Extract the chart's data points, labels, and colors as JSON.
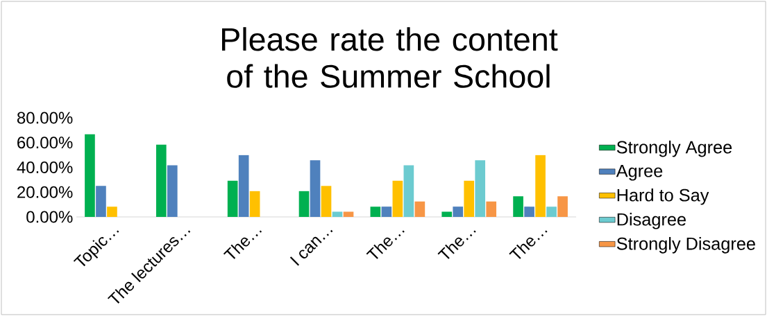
{
  "chart_data": {
    "type": "bar",
    "title": "Please rate the content of the Summer School",
    "categories": [
      "Topic…",
      "The lectures…",
      "The…",
      "I can…",
      "The…",
      "The…",
      "The…"
    ],
    "series": [
      {
        "name": "Strongly Agree",
        "color": "#00b050",
        "values": [
          66.7,
          58.3,
          29.2,
          20.8,
          8.3,
          4.2,
          16.7
        ]
      },
      {
        "name": "Agree",
        "color": "#4f81bd",
        "values": [
          25,
          41.7,
          50,
          45.8,
          8.3,
          8.3,
          8.3
        ]
      },
      {
        "name": "Hard to Say",
        "color": "#ffc000",
        "values": [
          8.3,
          0,
          20.8,
          25,
          29.2,
          29.2,
          50
        ]
      },
      {
        "name": "Disagree",
        "color": "#6ccbd0",
        "values": [
          0,
          0,
          0,
          4.2,
          41.7,
          45.8,
          8.3
        ]
      },
      {
        "name": "Strongly Disagree",
        "color": "#f79646",
        "values": [
          0,
          0,
          0,
          4.2,
          12.5,
          12.5,
          16.7
        ]
      }
    ],
    "ylim": [
      0,
      80
    ],
    "yticks": [
      {
        "value": 0,
        "label": "0.00%"
      },
      {
        "value": 20,
        "label": "20.00%"
      },
      {
        "value": 40,
        "label": "40.00%"
      },
      {
        "value": 60,
        "label": "60.00%"
      },
      {
        "value": 80,
        "label": "80.00%"
      }
    ],
    "legend": "right"
  }
}
